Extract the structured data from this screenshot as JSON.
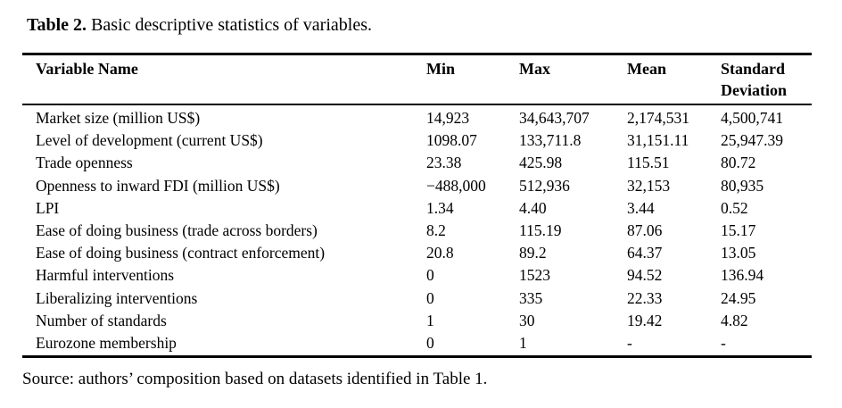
{
  "caption": {
    "label": "Table 2.",
    "text": "Basic descriptive statistics of variables."
  },
  "table": {
    "columns": [
      "Variable Name",
      "Min",
      "Max",
      "Mean",
      "Standard Deviation"
    ],
    "rows": [
      [
        "Market size (million US$)",
        "14,923",
        "34,643,707",
        "2,174,531",
        "4,500,741"
      ],
      [
        "Level of development (current US$)",
        "1098.07",
        "133,711.8",
        "31,151.11",
        "25,947.39"
      ],
      [
        "Trade openness",
        "23.38",
        "425.98",
        "115.51",
        "80.72"
      ],
      [
        "Openness to inward FDI (million US$)",
        "−488,000",
        "512,936",
        "32,153",
        "80,935"
      ],
      [
        "LPI",
        "1.34",
        "4.40",
        "3.44",
        "0.52"
      ],
      [
        "Ease of doing business (trade across borders)",
        "8.2",
        "115.19",
        "87.06",
        "15.17"
      ],
      [
        "Ease of doing business (contract enforcement)",
        "20.8",
        "89.2",
        "64.37",
        "13.05"
      ],
      [
        "Harmful interventions",
        "0",
        "1523",
        "94.52",
        "136.94"
      ],
      [
        "Liberalizing interventions",
        "0",
        "335",
        "22.33",
        "24.95"
      ],
      [
        "Number of standards",
        "1",
        "30",
        "19.42",
        "4.82"
      ],
      [
        "Eurozone membership",
        "0",
        "1",
        "-",
        "-"
      ]
    ]
  },
  "source": "Source: authors’ composition based on datasets identified in Table 1."
}
